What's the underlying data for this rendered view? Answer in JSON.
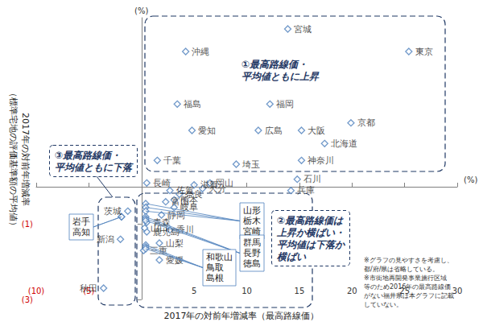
{
  "chart_data": {
    "type": "scatter",
    "x_title": "2017年の対前年増減率（最高路線価）",
    "y_title": [
      "2017年の対前年増減率",
      "（標準宅地の評価基準額の平均値）"
    ],
    "x_unit": "(%)",
    "y_unit": "(%)",
    "xlim": [
      -10,
      30
    ],
    "xticks": [
      {
        "value": -10,
        "label": "(10)"
      },
      {
        "value": -5,
        "label": "(5)"
      },
      5,
      10,
      15,
      20,
      25,
      30
    ],
    "ylim": [
      -3,
      4.5
    ],
    "yticks": [
      {
        "value": -3,
        "label": "(3)"
      },
      {
        "value": -1,
        "label": "(1)"
      }
    ],
    "grid": false,
    "marker": "diamond",
    "color": "#4f81bd",
    "points": [
      {
        "name": "宮城",
        "x": 13.9,
        "y": 4.2
      },
      {
        "name": "東京",
        "x": 25.4,
        "y": 3.6
      },
      {
        "name": "沖縄",
        "x": 4.2,
        "y": 3.6
      },
      {
        "name": "福島",
        "x": 3.4,
        "y": 2.2
      },
      {
        "name": "福岡",
        "x": 12.2,
        "y": 2.2
      },
      {
        "name": "愛知",
        "x": 4.8,
        "y": 1.5
      },
      {
        "name": "広島",
        "x": 11.1,
        "y": 1.5
      },
      {
        "name": "大阪",
        "x": 15.2,
        "y": 1.5
      },
      {
        "name": "京都",
        "x": 19.9,
        "y": 1.7
      },
      {
        "name": "北海道",
        "x": 17.4,
        "y": 1.15
      },
      {
        "name": "神奈川",
        "x": 15.2,
        "y": 0.7
      },
      {
        "name": "千葉",
        "x": 1.5,
        "y": 0.7
      },
      {
        "name": "埼玉",
        "x": 9.0,
        "y": 0.6
      },
      {
        "name": "石川",
        "x": 14.8,
        "y": 0.2
      },
      {
        "name": "兵庫",
        "x": 14.2,
        "y": -0.1
      },
      {
        "name": "滋賀",
        "x": 5.0,
        "y": 0.05
      },
      {
        "name": "岡山",
        "x": 6.5,
        "y": 0.1
      },
      {
        "name": "大分",
        "x": 5.8,
        "y": -0.05
      },
      {
        "name": "長崎",
        "x": 0.5,
        "y": 0.1
      },
      {
        "name": "佐賀",
        "x": 2.7,
        "y": -0.1
      },
      {
        "name": "奈良",
        "x": 3.6,
        "y": -0.2
      },
      {
        "name": "熊本",
        "x": 3.1,
        "y": -0.35
      },
      {
        "name": "富山",
        "x": 2.3,
        "y": -0.4
      },
      {
        "name": "岐阜",
        "x": 3.1,
        "y": -0.55
      },
      {
        "name": "静岡",
        "x": 1.9,
        "y": -0.75
      },
      {
        "name": "香川",
        "x": 2.7,
        "y": -1.15
      },
      {
        "name": "山梨",
        "x": 1.7,
        "y": -1.5
      },
      {
        "name": "愛媛",
        "x": 1.7,
        "y": -1.95
      },
      {
        "name": "青森",
        "x": 0.5,
        "y": -0.95
      },
      {
        "name": "鹿児島",
        "x": 0.5,
        "y": -1.2
      },
      {
        "name": "三重",
        "x": 0.2,
        "y": -1.7
      },
      {
        "name": "山口",
        "x": 0.3,
        "y": -1.1
      },
      {
        "name": "山形",
        "x": 0.4,
        "y": -0.45
      },
      {
        "name": "栃木",
        "x": 0.4,
        "y": -0.55
      },
      {
        "name": "宮崎",
        "x": 0.4,
        "y": -0.65
      },
      {
        "name": "群馬",
        "x": 0.4,
        "y": -0.8
      },
      {
        "name": "長野",
        "x": 0.4,
        "y": -0.85
      },
      {
        "name": "徳島",
        "x": 0.4,
        "y": -0.9
      },
      {
        "name": "和歌山",
        "x": 0.4,
        "y": -1.55
      },
      {
        "name": "鳥取",
        "x": 0.4,
        "y": -1.6
      },
      {
        "name": "島根",
        "x": 0.4,
        "y": -1.65
      },
      {
        "name": "茨城",
        "x": -1.3,
        "y": -0.65
      },
      {
        "name": "岩手",
        "x": -1.9,
        "y": -0.8
      },
      {
        "name": "高知",
        "x": -1.9,
        "y": -0.8
      },
      {
        "name": "新潟",
        "x": -2.0,
        "y": -1.4
      },
      {
        "name": "秋田",
        "x": -3.6,
        "y": -2.7
      }
    ],
    "label_groups": [
      [
        "山形",
        "栃木",
        "宮崎"
      ],
      [
        "群馬",
        "長野",
        "徳島"
      ],
      [
        "和歌山",
        "鳥取",
        "島根"
      ],
      [
        "岩手",
        "高知"
      ]
    ],
    "regions": [
      [
        "①最高路線価・",
        "平均値ともに上昇"
      ],
      [
        "②最高路線価は",
        "上昇か横ばい・",
        "平均値は下落か",
        "横ばい"
      ],
      [
        "③最高路線価・",
        "平均値ともに下落"
      ]
    ],
    "notes": [
      "※グラフの見やすさを考慮し、",
      "都/府/県は省略している。",
      "※市街地再開発事業施行区域",
      "等のため2016年の最高路線価",
      "がない福井県は本グラフに記載",
      "していない。"
    ]
  }
}
